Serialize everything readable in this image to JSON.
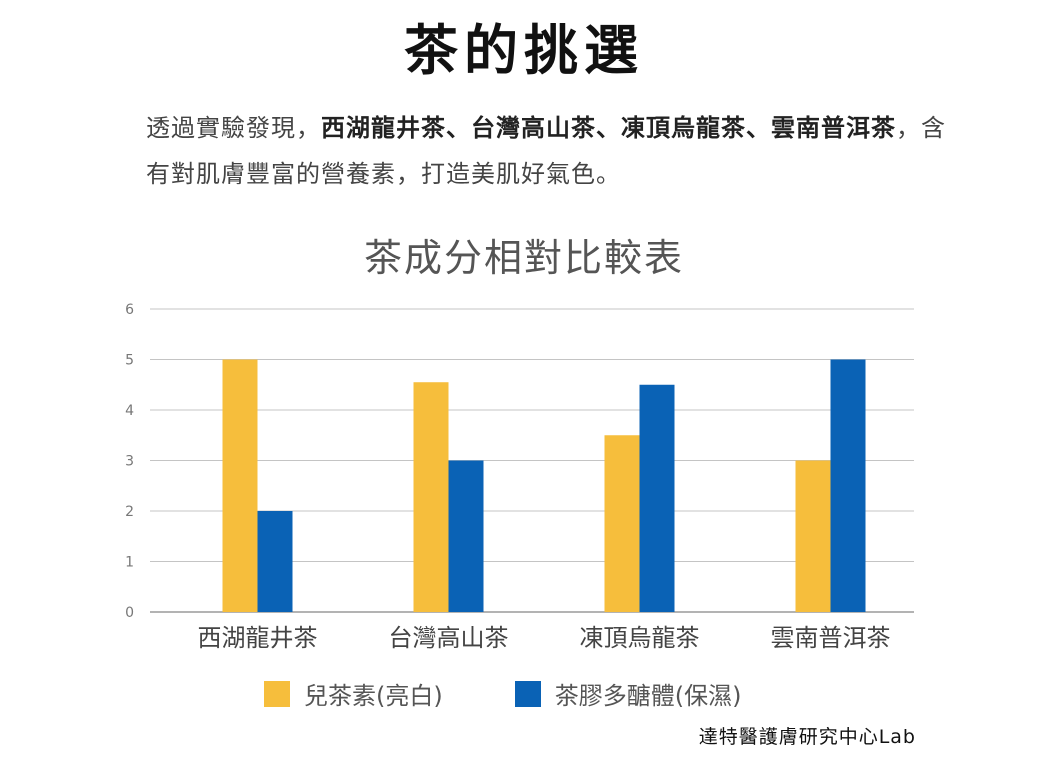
{
  "header": {
    "title": "茶的挑選"
  },
  "intro": {
    "lead": "透過實驗發現，",
    "highlight": "西湖龍井茶、台灣高山茶、凍頂烏龍茶、雲南普洱茶",
    "tail": "，含有對肌膚豐富的營養素，打造美肌好氣色。"
  },
  "credit": "達特醫護膚研究中心Lab",
  "chart_data": {
    "type": "bar",
    "title": "茶成分相對比較表",
    "xlabel": "",
    "ylabel": "",
    "categories": [
      "西湖龍井茶",
      "台灣高山茶",
      "凍頂烏龍茶",
      "雲南普洱茶"
    ],
    "series": [
      {
        "name": "兒茶素(亮白)",
        "values": [
          5,
          4.55,
          3.5,
          3
        ],
        "color": "#F6BE3C"
      },
      {
        "name": "茶膠多醣體(保濕)",
        "values": [
          2,
          3,
          4.5,
          5
        ],
        "color": "#0A62B5"
      }
    ],
    "ylim": [
      0,
      6
    ],
    "yticks": [
      "0",
      "1",
      "2",
      "3",
      "4",
      "5",
      "6"
    ],
    "grid": true,
    "legend": "bottom"
  }
}
